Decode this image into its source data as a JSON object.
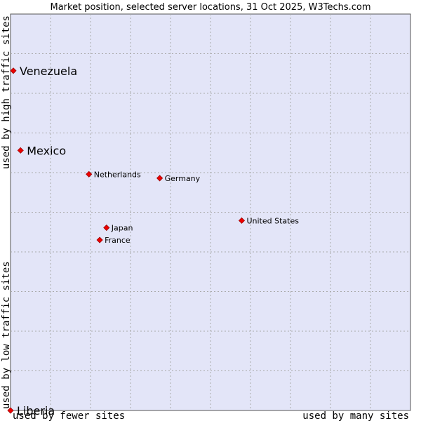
{
  "chart_data": {
    "type": "scatter",
    "title": "Market position, selected server locations, 31 Oct 2025, W3Techs.com",
    "xlabel_low": "used by fewer sites",
    "xlabel_high": "used by many sites",
    "ylabel_low": "used by low traffic sites",
    "ylabel_high": "used by high traffic sites",
    "xlim": [
      0,
      100
    ],
    "ylim": [
      0,
      100
    ],
    "grid": true,
    "colors": {
      "plot_bg": "#e3e5f8",
      "grid": "#aaaaaa",
      "point": "#ee0000",
      "point_edge": "#990000"
    },
    "points": [
      {
        "name": "Venezuela",
        "x": 0.7,
        "y": 85.7,
        "emphasis": true
      },
      {
        "name": "Mexico",
        "x": 2.5,
        "y": 65.6,
        "emphasis": true
      },
      {
        "name": "Netherlands",
        "x": 19.6,
        "y": 59.6,
        "emphasis": false
      },
      {
        "name": "Germany",
        "x": 37.3,
        "y": 58.6,
        "emphasis": false
      },
      {
        "name": "United States",
        "x": 57.8,
        "y": 47.9,
        "emphasis": false
      },
      {
        "name": "Japan",
        "x": 24.0,
        "y": 46.1,
        "emphasis": false
      },
      {
        "name": "France",
        "x": 22.3,
        "y": 43.0,
        "emphasis": false
      },
      {
        "name": "Liberia",
        "x": 0.0,
        "y": 0.0,
        "emphasis": true
      }
    ]
  }
}
